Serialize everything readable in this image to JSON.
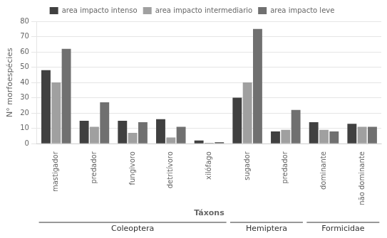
{
  "chart_data": {
    "type": "bar",
    "categories": [
      "mastigador",
      "predador",
      "fungivoro",
      "detritívoro",
      "xilófago",
      "sugador",
      "predador",
      "dominante",
      "não dominante"
    ],
    "series": [
      {
        "name": "area impacto intenso",
        "color": "#404040",
        "values": [
          48,
          15,
          15,
          16,
          2,
          30,
          8,
          14,
          13
        ]
      },
      {
        "name": "area impacto intermediario",
        "color": "#a0a0a0",
        "values": [
          40,
          11,
          7,
          4,
          0.5,
          40,
          9,
          9,
          11
        ]
      },
      {
        "name": "area impacto leve",
        "color": "#707070",
        "values": [
          62,
          27,
          14,
          11,
          1,
          75,
          22,
          8,
          11
        ]
      }
    ],
    "ylabel": "N° morfoespécies",
    "xlabel": "Táxons",
    "ylim": [
      0,
      80
    ],
    "yticks": [
      0,
      10,
      20,
      30,
      40,
      50,
      60,
      70,
      80
    ],
    "annotations": [
      {
        "text": "Coleoptera",
        "span": [
          0,
          4
        ]
      },
      {
        "text": "Hemiptera",
        "span": [
          5,
          6
        ]
      },
      {
        "text": "Formicidae",
        "span": [
          7,
          8
        ]
      }
    ],
    "legend": "top"
  }
}
